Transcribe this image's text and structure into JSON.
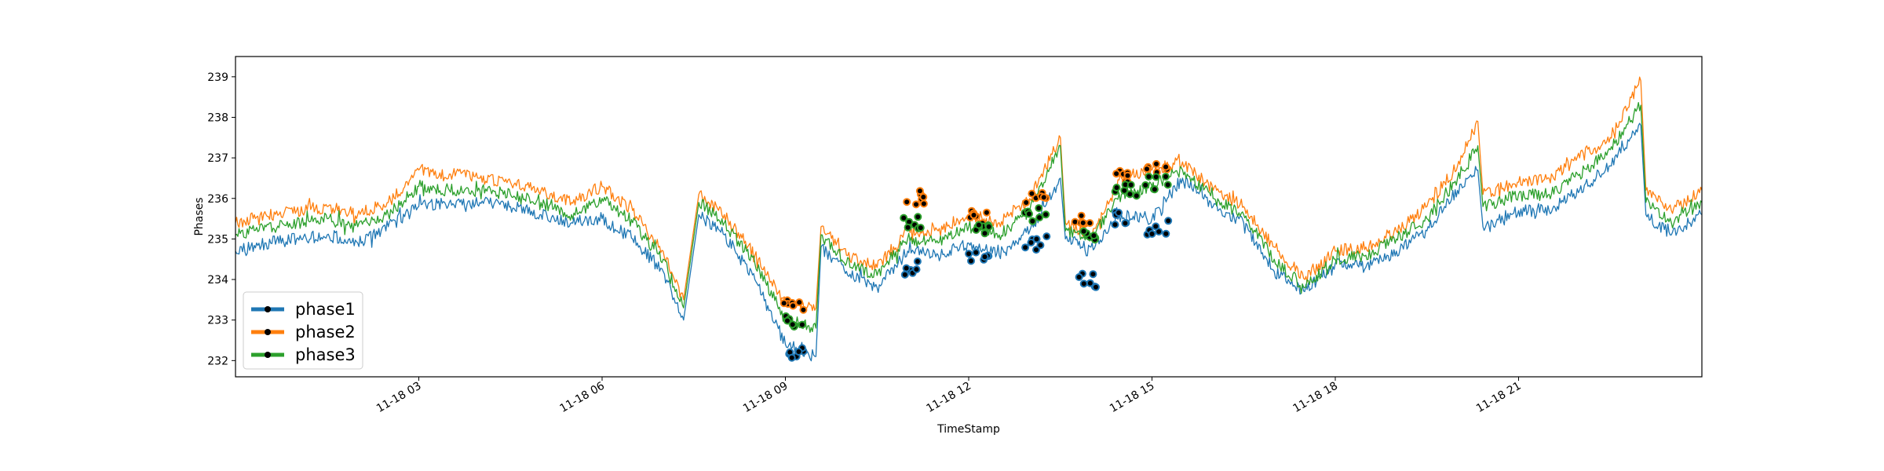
{
  "chart_data": {
    "type": "line",
    "title": "",
    "xlabel": "TimeStamp",
    "ylabel": "Phases",
    "x_range": [
      "2020-11-18 00:00",
      "2020-11-19 00:00"
    ],
    "x_ticks": [
      {
        "t": "2020-11-18 03:00",
        "label": "11-18 03"
      },
      {
        "t": "2020-11-18 06:00",
        "label": "11-18 06"
      },
      {
        "t": "2020-11-18 09:00",
        "label": "11-18 09"
      },
      {
        "t": "2020-11-18 12:00",
        "label": "11-18 12"
      },
      {
        "t": "2020-11-18 15:00",
        "label": "11-18 15"
      },
      {
        "t": "2020-11-18 18:00",
        "label": "11-18 18"
      },
      {
        "t": "2020-11-18 21:00",
        "label": "11-18 21"
      }
    ],
    "ylim": [
      231.6,
      239.5
    ],
    "y_ticks": [
      232,
      233,
      234,
      235,
      236,
      237,
      238,
      239
    ],
    "grid": false,
    "legend_position": "bottom-left",
    "series": [
      {
        "name": "phase1",
        "color": "#1f77b4",
        "x": [
          "2020-11-18 00:00",
          "2020-11-18 00:30",
          "2020-11-18 01:00",
          "2020-11-18 01:30",
          "2020-11-18 02:00",
          "2020-11-18 02:30",
          "2020-11-18 03:00",
          "2020-11-18 03:30",
          "2020-11-18 04:00",
          "2020-11-18 04:30",
          "2020-11-18 05:00",
          "2020-11-18 05:30",
          "2020-11-18 06:00",
          "2020-11-18 06:30",
          "2020-11-18 07:00",
          "2020-11-18 07:20",
          "2020-11-18 07:35",
          "2020-11-18 08:00",
          "2020-11-18 08:30",
          "2020-11-18 09:00",
          "2020-11-18 09:30",
          "2020-11-18 09:35",
          "2020-11-18 10:00",
          "2020-11-18 10:30",
          "2020-11-18 11:00",
          "2020-11-18 11:30",
          "2020-11-18 12:00",
          "2020-11-18 12:30",
          "2020-11-18 13:00",
          "2020-11-18 13:30",
          "2020-11-18 13:35",
          "2020-11-18 14:00",
          "2020-11-18 14:30",
          "2020-11-18 15:00",
          "2020-11-18 15:30",
          "2020-11-18 16:00",
          "2020-11-18 16:30",
          "2020-11-18 17:00",
          "2020-11-18 17:30",
          "2020-11-18 18:00",
          "2020-11-18 18:30",
          "2020-11-18 19:00",
          "2020-11-18 19:30",
          "2020-11-18 20:00",
          "2020-11-18 20:20",
          "2020-11-18 20:25",
          "2020-11-18 21:00",
          "2020-11-18 21:30",
          "2020-11-18 22:00",
          "2020-11-18 22:30",
          "2020-11-18 23:00",
          "2020-11-18 23:05",
          "2020-11-18 23:30",
          "2020-11-19 00:00"
        ],
        "values": [
          234.7,
          234.9,
          235.0,
          235.1,
          234.9,
          235.3,
          235.8,
          235.9,
          235.9,
          235.8,
          235.6,
          235.4,
          235.5,
          235.0,
          234.2,
          233.0,
          235.6,
          235.1,
          234.0,
          232.4,
          232.1,
          234.8,
          234.2,
          233.8,
          234.7,
          234.6,
          234.9,
          234.6,
          235.2,
          236.5,
          235.0,
          234.8,
          235.6,
          235.5,
          236.5,
          235.8,
          235.4,
          234.2,
          233.7,
          234.4,
          234.3,
          234.7,
          235.2,
          236.2,
          236.7,
          235.3,
          235.7,
          235.7,
          236.2,
          236.8,
          237.8,
          235.6,
          235.1,
          235.6
        ],
        "markers": [
          {
            "x": "2020-11-18 09:10",
            "y": 232.2
          },
          {
            "x": "2020-11-18 11:05",
            "y": 234.3
          },
          {
            "x": "2020-11-18 12:10",
            "y": 234.6
          },
          {
            "x": "2020-11-18 13:05",
            "y": 234.9
          },
          {
            "x": "2020-11-18 13:55",
            "y": 234.0
          },
          {
            "x": "2020-11-18 14:35",
            "y": 235.5
          },
          {
            "x": "2020-11-18 15:05",
            "y": 235.3
          }
        ]
      },
      {
        "name": "phase2",
        "color": "#ff7f0e",
        "x": [
          "2020-11-18 00:00",
          "2020-11-18 00:30",
          "2020-11-18 01:00",
          "2020-11-18 01:30",
          "2020-11-18 02:00",
          "2020-11-18 02:30",
          "2020-11-18 03:00",
          "2020-11-18 03:30",
          "2020-11-18 04:00",
          "2020-11-18 04:30",
          "2020-11-18 05:00",
          "2020-11-18 05:30",
          "2020-11-18 06:00",
          "2020-11-18 06:30",
          "2020-11-18 07:00",
          "2020-11-18 07:20",
          "2020-11-18 07:35",
          "2020-11-18 08:00",
          "2020-11-18 08:30",
          "2020-11-18 09:00",
          "2020-11-18 09:30",
          "2020-11-18 09:35",
          "2020-11-18 10:00",
          "2020-11-18 10:30",
          "2020-11-18 11:00",
          "2020-11-18 11:30",
          "2020-11-18 12:00",
          "2020-11-18 12:30",
          "2020-11-18 13:00",
          "2020-11-18 13:30",
          "2020-11-18 13:35",
          "2020-11-18 14:00",
          "2020-11-18 14:30",
          "2020-11-18 15:00",
          "2020-11-18 15:30",
          "2020-11-18 16:00",
          "2020-11-18 16:30",
          "2020-11-18 17:00",
          "2020-11-18 17:30",
          "2020-11-18 18:00",
          "2020-11-18 18:30",
          "2020-11-18 19:00",
          "2020-11-18 19:30",
          "2020-11-18 20:00",
          "2020-11-18 20:20",
          "2020-11-18 20:25",
          "2020-11-18 21:00",
          "2020-11-18 21:30",
          "2020-11-18 22:00",
          "2020-11-18 22:30",
          "2020-11-18 23:00",
          "2020-11-18 23:05",
          "2020-11-18 23:30",
          "2020-11-19 00:00"
        ],
        "values": [
          235.4,
          235.6,
          235.7,
          235.8,
          235.6,
          235.9,
          236.7,
          236.6,
          236.5,
          236.4,
          236.2,
          235.9,
          236.3,
          235.7,
          234.7,
          233.5,
          236.1,
          235.6,
          234.6,
          233.4,
          233.3,
          235.3,
          234.6,
          234.3,
          235.2,
          235.2,
          235.6,
          235.4,
          236.0,
          237.5,
          235.4,
          235.1,
          236.5,
          236.7,
          236.9,
          236.2,
          235.8,
          234.8,
          234.0,
          234.7,
          234.8,
          235.2,
          235.8,
          236.8,
          237.9,
          236.1,
          236.4,
          236.5,
          237.0,
          237.5,
          238.9,
          236.2,
          235.7,
          236.2
        ],
        "markers": [
          {
            "x": "2020-11-18 09:10",
            "y": 233.3
          },
          {
            "x": "2020-11-18 11:05",
            "y": 236.0
          },
          {
            "x": "2020-11-18 12:10",
            "y": 235.5
          },
          {
            "x": "2020-11-18 13:05",
            "y": 236.0
          },
          {
            "x": "2020-11-18 13:55",
            "y": 235.5
          },
          {
            "x": "2020-11-18 14:35",
            "y": 236.6
          },
          {
            "x": "2020-11-18 15:05",
            "y": 236.8
          }
        ]
      },
      {
        "name": "phase3",
        "color": "#2ca02c",
        "x": [
          "2020-11-18 00:00",
          "2020-11-18 00:30",
          "2020-11-18 01:00",
          "2020-11-18 01:30",
          "2020-11-18 02:00",
          "2020-11-18 02:30",
          "2020-11-18 03:00",
          "2020-11-18 03:30",
          "2020-11-18 04:00",
          "2020-11-18 04:30",
          "2020-11-18 05:00",
          "2020-11-18 05:30",
          "2020-11-18 06:00",
          "2020-11-18 06:30",
          "2020-11-18 07:00",
          "2020-11-18 07:20",
          "2020-11-18 07:35",
          "2020-11-18 08:00",
          "2020-11-18 08:30",
          "2020-11-18 09:00",
          "2020-11-18 09:30",
          "2020-11-18 09:35",
          "2020-11-18 10:00",
          "2020-11-18 10:30",
          "2020-11-18 11:00",
          "2020-11-18 11:30",
          "2020-11-18 12:00",
          "2020-11-18 12:30",
          "2020-11-18 13:00",
          "2020-11-18 13:30",
          "2020-11-18 13:35",
          "2020-11-18 14:00",
          "2020-11-18 14:30",
          "2020-11-18 15:00",
          "2020-11-18 15:30",
          "2020-11-18 16:00",
          "2020-11-18 16:30",
          "2020-11-18 17:00",
          "2020-11-18 17:30",
          "2020-11-18 18:00",
          "2020-11-18 18:30",
          "2020-11-18 19:00",
          "2020-11-18 19:30",
          "2020-11-18 20:00",
          "2020-11-18 20:20",
          "2020-11-18 20:25",
          "2020-11-18 21:00",
          "2020-11-18 21:30",
          "2020-11-18 22:00",
          "2020-11-18 22:30",
          "2020-11-18 23:00",
          "2020-11-18 23:05",
          "2020-11-18 23:30",
          "2020-11-19 00:00"
        ],
        "values": [
          235.1,
          235.3,
          235.4,
          235.5,
          235.3,
          235.6,
          236.3,
          236.2,
          236.2,
          236.1,
          235.9,
          235.6,
          236.0,
          235.4,
          234.5,
          233.3,
          235.9,
          235.4,
          234.4,
          233.0,
          232.8,
          235.1,
          234.4,
          234.1,
          235.0,
          234.9,
          235.3,
          235.1,
          235.7,
          237.3,
          235.2,
          235.0,
          236.1,
          236.3,
          236.7,
          236.0,
          235.6,
          234.5,
          233.8,
          234.5,
          234.6,
          235.0,
          235.5,
          236.5,
          237.3,
          235.8,
          236.1,
          236.1,
          236.6,
          237.2,
          238.3,
          235.9,
          235.4,
          235.9
        ],
        "markers": [
          {
            "x": "2020-11-18 09:10",
            "y": 232.9
          },
          {
            "x": "2020-11-18 11:05",
            "y": 235.4
          },
          {
            "x": "2020-11-18 12:10",
            "y": 235.2
          },
          {
            "x": "2020-11-18 13:05",
            "y": 235.6
          },
          {
            "x": "2020-11-18 13:55",
            "y": 235.1
          },
          {
            "x": "2020-11-18 14:35",
            "y": 236.2
          },
          {
            "x": "2020-11-18 15:05",
            "y": 236.4
          }
        ]
      }
    ]
  }
}
